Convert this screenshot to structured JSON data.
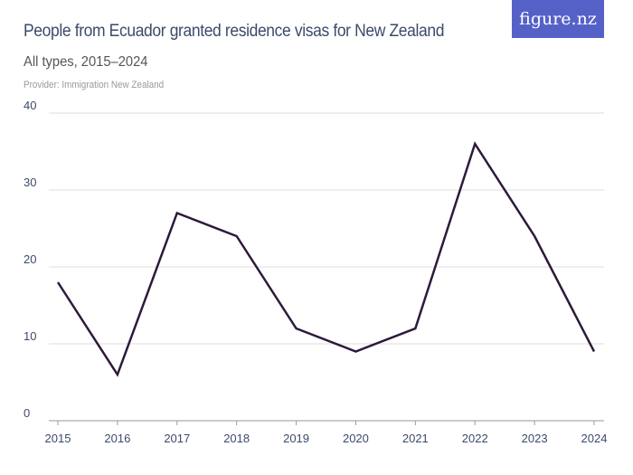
{
  "header": {
    "title": "People from Ecuador granted residence visas for New Zealand",
    "subtitle": "All types, 2015–2024",
    "provider": "Provider: Immigration New Zealand",
    "logo": "figure.nz",
    "logo_color": "#5661c8"
  },
  "chart_data": {
    "type": "line",
    "title": "People from Ecuador granted residence visas for New Zealand",
    "subtitle": "All types, 2015–2024",
    "xlabel": "",
    "ylabel": "",
    "categories": [
      "2015",
      "2016",
      "2017",
      "2018",
      "2019",
      "2020",
      "2021",
      "2022",
      "2023",
      "2024"
    ],
    "values": [
      18,
      6,
      27,
      24,
      12,
      9,
      12,
      36,
      24,
      9
    ],
    "ylim": [
      0,
      40
    ],
    "yticks": [
      0,
      10,
      20,
      30,
      40
    ],
    "grid": true,
    "line_color": "#2d1a3b"
  }
}
